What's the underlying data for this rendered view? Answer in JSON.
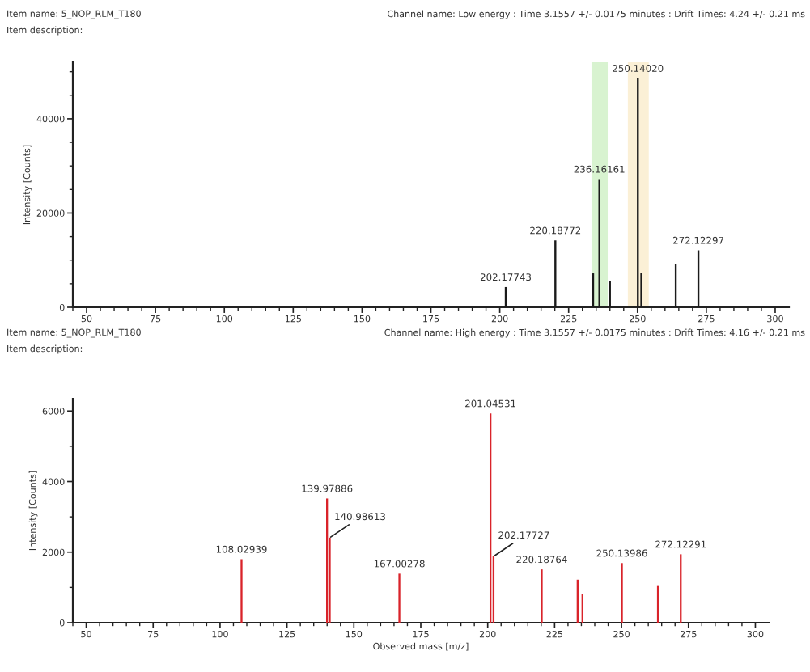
{
  "chart_data": [
    {
      "type": "bar",
      "title": "Channel name: Low energy : Time 3.1557 +/- 0.0175 minutes : Drift Times: 4.24 +/- 0.21 ms",
      "subtitle": "Item name: 5_NOP_RLM_T180",
      "ylabel": "Intensity [Counts]",
      "x": [
        202.17743,
        220.18772,
        233.9,
        236.16161,
        240.0,
        250.1402,
        251.4,
        263.9,
        272.12297
      ],
      "values": [
        4300,
        14200,
        7200,
        27200,
        5500,
        48600,
        7300,
        9100,
        12100
      ],
      "color": "#1a1a1a",
      "xlim": [
        45,
        305
      ],
      "ylim": [
        0,
        52000
      ],
      "xticks": [
        {
          "value": 45,
          "label": null
        },
        50,
        {
          "value": 55,
          "label": null
        },
        {
          "value": 60,
          "label": null
        },
        {
          "value": 65,
          "label": null
        },
        {
          "value": 70,
          "label": null
        },
        75,
        {
          "value": 80,
          "label": null
        },
        {
          "value": 85,
          "label": null
        },
        {
          "value": 90,
          "label": null
        },
        {
          "value": 95,
          "label": null
        },
        100,
        {
          "value": 105,
          "label": null
        },
        {
          "value": 110,
          "label": null
        },
        {
          "value": 115,
          "label": null
        },
        {
          "value": 120,
          "label": null
        },
        125,
        {
          "value": 130,
          "label": null
        },
        {
          "value": 135,
          "label": null
        },
        {
          "value": 140,
          "label": null
        },
        {
          "value": 145,
          "label": null
        },
        150,
        {
          "value": 155,
          "label": null
        },
        {
          "value": 160,
          "label": null
        },
        {
          "value": 165,
          "label": null
        },
        {
          "value": 170,
          "label": null
        },
        175,
        {
          "value": 180,
          "label": null
        },
        {
          "value": 185,
          "label": null
        },
        {
          "value": 190,
          "label": null
        },
        {
          "value": 195,
          "label": null
        },
        200,
        {
          "value": 205,
          "label": null
        },
        {
          "value": 210,
          "label": null
        },
        {
          "value": 215,
          "label": null
        },
        {
          "value": 220,
          "label": null
        },
        225,
        {
          "value": 230,
          "label": null
        },
        {
          "value": 235,
          "label": null
        },
        {
          "value": 240,
          "label": null
        },
        {
          "value": 245,
          "label": null
        },
        250,
        {
          "value": 255,
          "label": null
        },
        {
          "value": 260,
          "label": null
        },
        {
          "value": 265,
          "label": null
        },
        {
          "value": 270,
          "label": null
        },
        275,
        {
          "value": 280,
          "label": null
        },
        {
          "value": 285,
          "label": null
        },
        {
          "value": 290,
          "label": null
        },
        {
          "value": 295,
          "label": null
        },
        300
      ],
      "yticks": [
        0,
        {
          "value": 5000,
          "label": null
        },
        {
          "value": 10000,
          "label": null
        },
        {
          "value": 15000,
          "label": null
        },
        20000,
        {
          "value": 25000,
          "label": null
        },
        {
          "value": 30000,
          "label": null
        },
        {
          "value": 35000,
          "label": null
        },
        40000,
        {
          "value": 45000,
          "label": null
        },
        {
          "value": 50000,
          "label": null
        }
      ],
      "bands": [
        {
          "axis": "x",
          "from": 233.3,
          "to": 239.2,
          "color": "#d8f3d0"
        },
        {
          "axis": "x",
          "from": 246.5,
          "to": 254.1,
          "color": "#fbf0d6"
        }
      ],
      "annotations": [
        "Item description:",
        {
          "text": "202.17743",
          "x": 202.17743,
          "y": 4300
        },
        {
          "text": "220.18772",
          "x": 220.18772,
          "y": 14200
        },
        {
          "text": "236.16161",
          "x": 236.16161,
          "y": 27200
        },
        {
          "text": "250.14020",
          "x": 250.1402,
          "y": 48600
        },
        {
          "text": "272.12297",
          "x": 272.12297,
          "y": 12100
        }
      ],
      "grid": false
    },
    {
      "type": "bar",
      "title": "Channel name: High energy : Time 3.1557 +/- 0.0175 minutes : Drift Times: 4.16 +/- 0.21 ms",
      "subtitle": "Item name: 5_NOP_RLM_T180",
      "xlabel": "Observed mass [m/z]",
      "ylabel": "Intensity [Counts]",
      "x": [
        108.02939,
        139.97886,
        140.98613,
        167.00278,
        201.04531,
        202.17727,
        220.18764,
        233.6,
        235.4,
        250.13986,
        263.6,
        272.12291
      ],
      "values": [
        1800,
        3520,
        2410,
        1390,
        5930,
        1880,
        1510,
        1220,
        820,
        1690,
        1040,
        1940
      ],
      "color": "#d9232a",
      "xlim": [
        45,
        305
      ],
      "ylim": [
        0,
        6350
      ],
      "xticks": [
        {
          "value": 45,
          "label": null
        },
        50,
        {
          "value": 55,
          "label": null
        },
        {
          "value": 60,
          "label": null
        },
        {
          "value": 65,
          "label": null
        },
        {
          "value": 70,
          "label": null
        },
        75,
        {
          "value": 80,
          "label": null
        },
        {
          "value": 85,
          "label": null
        },
        {
          "value": 90,
          "label": null
        },
        {
          "value": 95,
          "label": null
        },
        100,
        {
          "value": 105,
          "label": null
        },
        {
          "value": 110,
          "label": null
        },
        {
          "value": 115,
          "label": null
        },
        {
          "value": 120,
          "label": null
        },
        125,
        {
          "value": 130,
          "label": null
        },
        {
          "value": 135,
          "label": null
        },
        {
          "value": 140,
          "label": null
        },
        {
          "value": 145,
          "label": null
        },
        150,
        {
          "value": 155,
          "label": null
        },
        {
          "value": 160,
          "label": null
        },
        {
          "value": 165,
          "label": null
        },
        {
          "value": 170,
          "label": null
        },
        175,
        {
          "value": 180,
          "label": null
        },
        {
          "value": 185,
          "label": null
        },
        {
          "value": 190,
          "label": null
        },
        {
          "value": 195,
          "label": null
        },
        200,
        {
          "value": 205,
          "label": null
        },
        {
          "value": 210,
          "label": null
        },
        {
          "value": 215,
          "label": null
        },
        {
          "value": 220,
          "label": null
        },
        225,
        {
          "value": 230,
          "label": null
        },
        {
          "value": 235,
          "label": null
        },
        {
          "value": 240,
          "label": null
        },
        {
          "value": 245,
          "label": null
        },
        250,
        {
          "value": 255,
          "label": null
        },
        {
          "value": 260,
          "label": null
        },
        {
          "value": 265,
          "label": null
        },
        {
          "value": 270,
          "label": null
        },
        275,
        {
          "value": 280,
          "label": null
        },
        {
          "value": 285,
          "label": null
        },
        {
          "value": 290,
          "label": null
        },
        {
          "value": 295,
          "label": null
        },
        300
      ],
      "yticks": [
        0,
        {
          "value": 1000,
          "label": null
        },
        2000,
        {
          "value": 3000,
          "label": null
        },
        4000,
        {
          "value": 5000,
          "label": null
        },
        6000
      ],
      "annotations": [
        "Item description:",
        {
          "text": "108.02939",
          "x": 108.02939,
          "y": 1800
        },
        {
          "text": "139.97886",
          "x": 139.97886,
          "y": 3520
        },
        {
          "text": "140.98613",
          "x": 140.98613,
          "y": 2410
        },
        {
          "text": "167.00278",
          "x": 167.00278,
          "y": 1390
        },
        {
          "text": "201.04531",
          "x": 201.04531,
          "y": 5930
        },
        {
          "text": "202.17727",
          "x": 202.17727,
          "y": 1880
        },
        {
          "text": "220.18764",
          "x": 220.18764,
          "y": 1510
        },
        {
          "text": "250.13986",
          "x": 250.13986,
          "y": 1690
        },
        {
          "text": "272.12291",
          "x": 272.12291,
          "y": 1940
        }
      ],
      "grid": false
    }
  ]
}
